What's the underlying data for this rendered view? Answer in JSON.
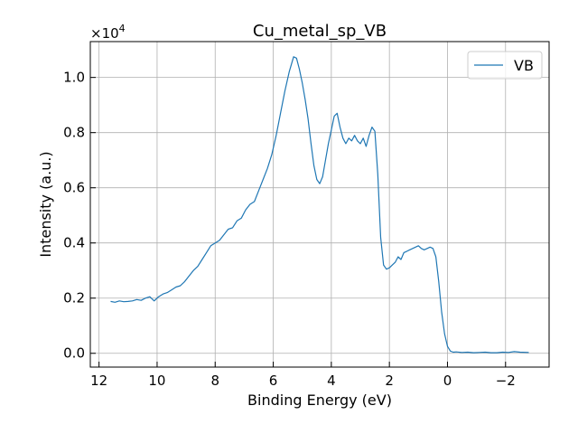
{
  "chart_data": {
    "type": "line",
    "title": "Cu_metal_sp_VB",
    "xlabel": "Binding Energy (eV)",
    "ylabel": "Intensity (a.u.)",
    "y_scale_label": "×10",
    "y_scale_exponent": "4",
    "xlim": [
      12.3,
      -3.5
    ],
    "ylim": [
      -500,
      11300
    ],
    "x_ticks": [
      12,
      10,
      8,
      6,
      4,
      2,
      0,
      -2
    ],
    "x_tick_labels": [
      "12",
      "10",
      "8",
      "6",
      "4",
      "2",
      "0",
      "−2"
    ],
    "y_ticks": [
      0,
      2000,
      4000,
      6000,
      8000,
      10000
    ],
    "y_tick_labels": [
      "0.0",
      "0.2",
      "0.4",
      "0.6",
      "0.8",
      "1.0"
    ],
    "grid": true,
    "legend_position": "top-right",
    "line_color": "#1f77b4",
    "series": [
      {
        "name": "VB",
        "x": [
          11.6,
          11.45,
          11.3,
          11.15,
          11.0,
          10.85,
          10.7,
          10.55,
          10.4,
          10.25,
          10.1,
          9.95,
          9.8,
          9.65,
          9.5,
          9.35,
          9.2,
          9.05,
          8.9,
          8.75,
          8.6,
          8.45,
          8.3,
          8.15,
          8.0,
          7.85,
          7.7,
          7.55,
          7.4,
          7.25,
          7.1,
          6.95,
          6.8,
          6.65,
          6.5,
          6.35,
          6.2,
          6.05,
          5.9,
          5.75,
          5.6,
          5.45,
          5.3,
          5.2,
          5.1,
          5.0,
          4.9,
          4.8,
          4.7,
          4.6,
          4.5,
          4.4,
          4.3,
          4.2,
          4.1,
          4.0,
          3.9,
          3.8,
          3.7,
          3.6,
          3.5,
          3.4,
          3.3,
          3.2,
          3.1,
          3.0,
          2.9,
          2.8,
          2.7,
          2.6,
          2.5,
          2.4,
          2.3,
          2.2,
          2.1,
          2.0,
          1.9,
          1.8,
          1.7,
          1.6,
          1.5,
          1.4,
          1.3,
          1.2,
          1.1,
          1.0,
          0.9,
          0.8,
          0.7,
          0.6,
          0.5,
          0.4,
          0.3,
          0.2,
          0.1,
          0.0,
          -0.1,
          -0.2,
          -0.3,
          -0.5,
          -0.7,
          -0.9,
          -1.1,
          -1.3,
          -1.5,
          -1.7,
          -1.9,
          -2.1,
          -2.3,
          -2.5,
          -2.8
        ],
        "y": [
          1880,
          1850,
          1900,
          1870,
          1880,
          1900,
          1950,
          1920,
          2000,
          2050,
          1900,
          2050,
          2150,
          2200,
          2300,
          2400,
          2450,
          2600,
          2800,
          3000,
          3150,
          3400,
          3650,
          3900,
          4000,
          4100,
          4300,
          4500,
          4550,
          4800,
          4900,
          5200,
          5400,
          5500,
          5900,
          6300,
          6700,
          7200,
          7900,
          8700,
          9500,
          10200,
          10750,
          10700,
          10300,
          9800,
          9200,
          8500,
          7600,
          6800,
          6300,
          6150,
          6400,
          7000,
          7600,
          8100,
          8600,
          8700,
          8200,
          7800,
          7600,
          7800,
          7700,
          7900,
          7700,
          7600,
          7800,
          7500,
          7900,
          8200,
          8050,
          6500,
          4200,
          3200,
          3050,
          3100,
          3200,
          3300,
          3500,
          3400,
          3650,
          3700,
          3750,
          3800,
          3850,
          3900,
          3800,
          3750,
          3800,
          3850,
          3800,
          3500,
          2600,
          1500,
          700,
          250,
          80,
          40,
          50,
          30,
          40,
          20,
          30,
          40,
          20,
          20,
          40,
          30,
          60,
          40,
          30
        ]
      }
    ]
  }
}
